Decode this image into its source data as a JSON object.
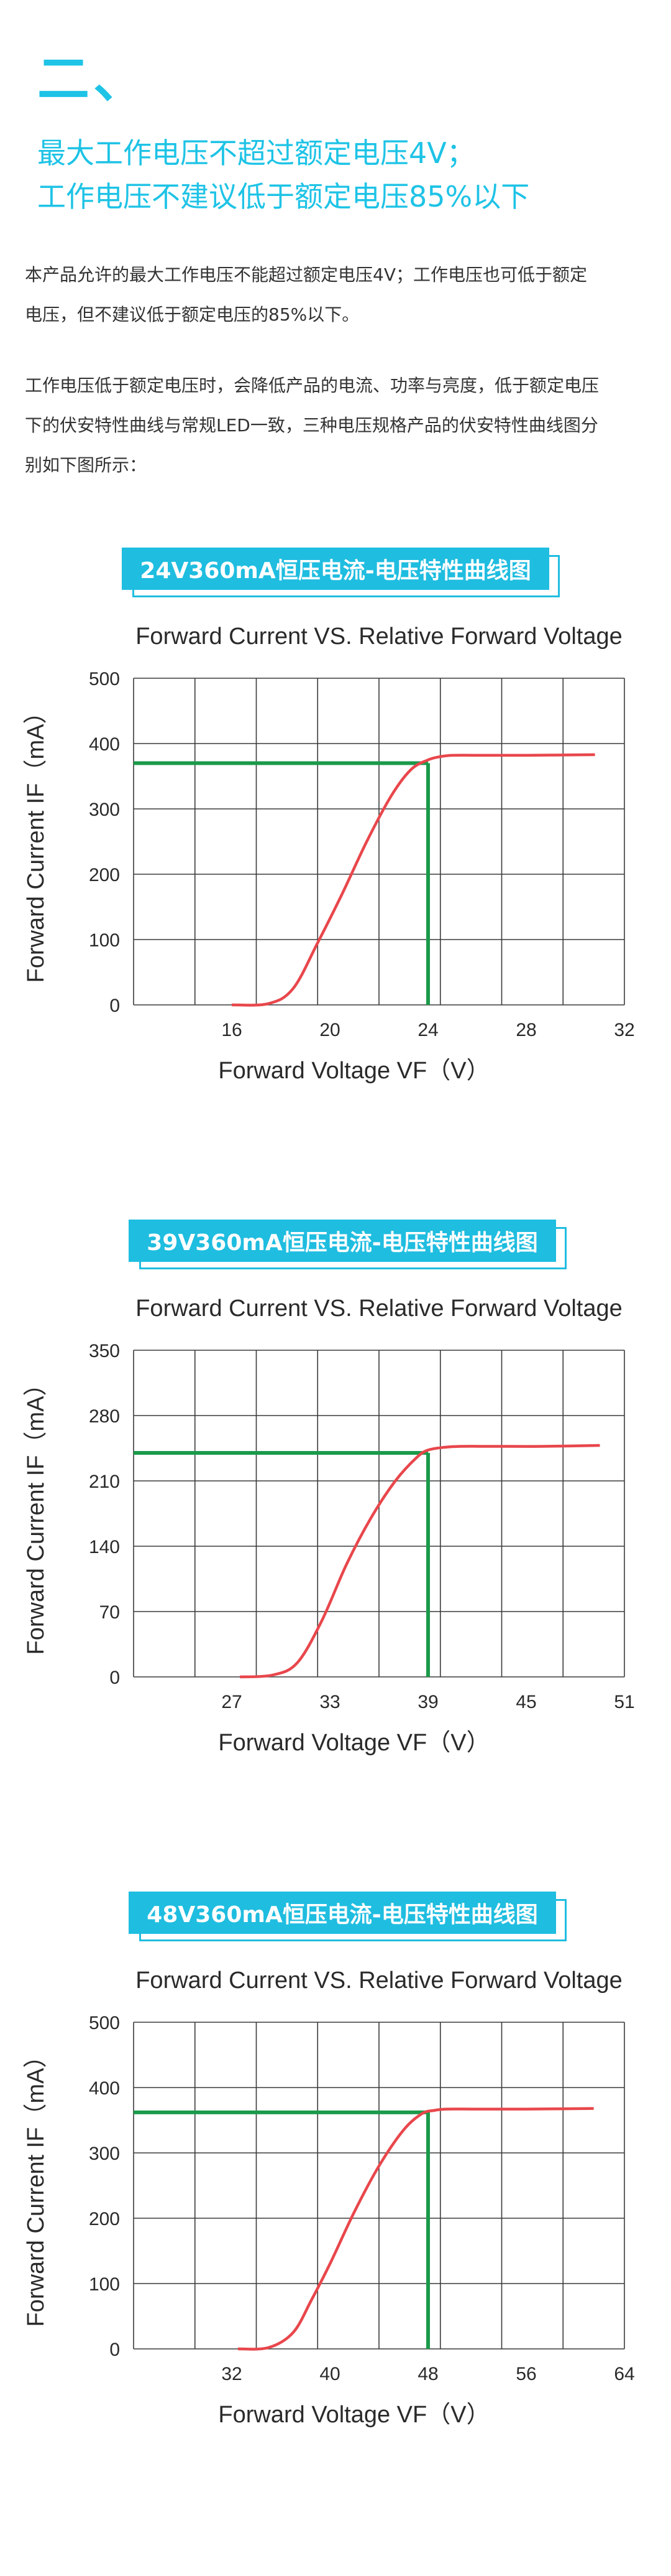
{
  "section": {
    "number": "二、"
  },
  "headline": {
    "line1": "最大工作电压不超过额定电压4V；",
    "line2": "工作电压不建议低于额定电压85%以下"
  },
  "paragraphs": [
    {
      "lines": [
        "本产品允许的最大工作电压不能超过额定电压4V；工作电压也可低于额定",
        "电压，但不建议低于额定电压的85%以下。"
      ]
    },
    {
      "lines": [
        "工作电压低于额定电压时，会降低产品的电流、功率与亮度，低于额定电压",
        "下的伏安特性曲线与常规LED一致，三种电压规格产品的伏安特性曲线图分",
        "别如下图所示："
      ]
    }
  ],
  "chart_data": [
    {
      "badge": "24V360mA恒压电流-电压特性曲线图",
      "type": "line",
      "title": "Forward Current VS. Relative Forward Voltage",
      "xlabel": "Forward Voltage VF（V）",
      "ylabel": "Forward Current IF（mA）",
      "xlim": [
        12,
        32
      ],
      "ylim": [
        0,
        500
      ],
      "xticks": [
        16,
        20,
        24,
        28,
        32
      ],
      "yticks": [
        0,
        100,
        200,
        300,
        400,
        500
      ],
      "grid": true,
      "series": [
        {
          "color": "#e8474c",
          "x": [
            16,
            17.5,
            18.5,
            19.5,
            20.5,
            21.5,
            22.5,
            23.3,
            24,
            24.5,
            25,
            26,
            28,
            30.8
          ],
          "y": [
            0,
            2,
            25,
            95,
            170,
            250,
            320,
            360,
            375,
            380,
            382,
            382,
            382,
            383
          ]
        }
      ],
      "reference": {
        "color": "#1a9a4a",
        "x": 24,
        "y": 370
      }
    },
    {
      "badge": "39V360mA恒压电流-电压特性曲线图",
      "type": "line",
      "title": "Forward Current VS. Relative Forward Voltage",
      "xlabel": "Forward Voltage VF（V）",
      "ylabel": "Forward Current IF（mA）",
      "xlim": [
        21,
        51
      ],
      "ylim": [
        0,
        350
      ],
      "xticks": [
        27,
        33,
        39,
        45,
        51
      ],
      "yticks": [
        0,
        70,
        140,
        210,
        280,
        350
      ],
      "grid": true,
      "series": [
        {
          "color": "#e8474c",
          "x": [
            27.5,
            29.5,
            31,
            32.5,
            34,
            35.5,
            37,
            38.3,
            39,
            40,
            41,
            43,
            46,
            49.5
          ],
          "y": [
            0,
            2,
            15,
            60,
            120,
            170,
            210,
            235,
            243,
            246,
            247,
            247,
            247,
            248
          ]
        }
      ],
      "reference": {
        "color": "#1a9a4a",
        "x": 39,
        "y": 240
      }
    },
    {
      "badge": "48V360mA恒压电流-电压特性曲线图",
      "type": "line",
      "title": "Forward Current VS. Relative Forward Voltage",
      "xlabel": "Forward Voltage VF（V）",
      "ylabel": "Forward Current IF（mA）",
      "xlim": [
        24,
        64
      ],
      "ylim": [
        0,
        500
      ],
      "xticks": [
        32,
        40,
        48,
        56,
        64
      ],
      "yticks": [
        0,
        100,
        200,
        300,
        400,
        500
      ],
      "grid": true,
      "series": [
        {
          "color": "#e8474c",
          "x": [
            32.5,
            35,
            37,
            38.5,
            40,
            42,
            44,
            46,
            47.5,
            48.5,
            49.5,
            52,
            56,
            61.5
          ],
          "y": [
            0,
            2,
            25,
            75,
            130,
            210,
            280,
            335,
            360,
            365,
            367,
            367,
            367,
            368
          ]
        }
      ],
      "reference": {
        "color": "#1a9a4a",
        "x": 48,
        "y": 362
      }
    }
  ]
}
